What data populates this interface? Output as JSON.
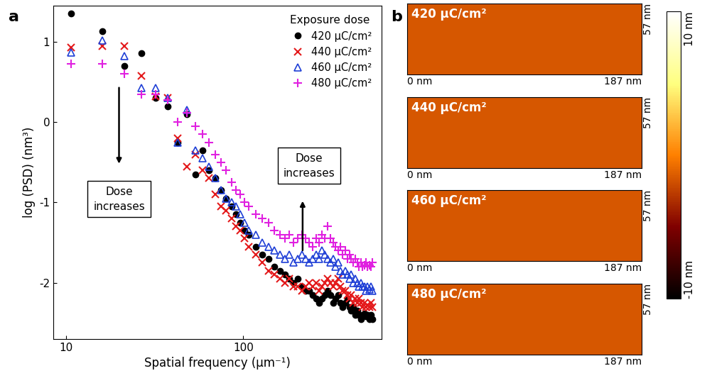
{
  "chart_data": [
    {
      "type": "scatter",
      "panel": "a",
      "x_label": "Spatial frequency (μm⁻¹)",
      "y_label": "log (PSD) (nm³)",
      "log": "x",
      "legend": "upper right",
      "legend_title": "Exposure dose",
      "xlim": [
        8.5,
        600
      ],
      "xticks": [
        10,
        100
      ],
      "ylim": [
        -2.7,
        1.45
      ],
      "yticks": [
        -2,
        -1,
        0,
        1
      ],
      "annotations": [
        "Dose\nincreases",
        "Dose\nincreases"
      ],
      "x": [
        10.7,
        16.0,
        21.4,
        26.7,
        32.1,
        37.4,
        42.8,
        48.1,
        53.5,
        58.8,
        64.2,
        69.5,
        74.9,
        80.2,
        85.6,
        90.9,
        96.3,
        101.6,
        107,
        117.7,
        128.4,
        139.1,
        149.8,
        160.5,
        171.2,
        181.9,
        192.6,
        203.3,
        214,
        224.7,
        235.4,
        246.1,
        256.8,
        267.5,
        278.2,
        288.9,
        299.6,
        310.3,
        321,
        331.7,
        342.4,
        353.1,
        363.8,
        374.5,
        385.2,
        395.9,
        406.6,
        417.3,
        428,
        438.7,
        449.4,
        460.1,
        470.8,
        481.5,
        492.2,
        502.9,
        513.6,
        524.3,
        535
      ],
      "series": [
        {
          "name": "420 μC/cm²",
          "color": "#000000",
          "marker": "circle",
          "values": [
            1.35,
            1.13,
            0.7,
            0.86,
            0.3,
            0.2,
            -0.25,
            0.1,
            -0.65,
            -0.35,
            -0.6,
            -0.7,
            -0.85,
            -0.95,
            -1.05,
            -1.15,
            -1.25,
            -1.35,
            -1.4,
            -1.55,
            -1.65,
            -1.7,
            -1.8,
            -1.85,
            -1.9,
            -1.95,
            -2.0,
            -1.95,
            -2.05,
            -2.1,
            -2.1,
            -2.15,
            -2.2,
            -2.25,
            -2.2,
            -2.15,
            -2.1,
            -2.15,
            -2.25,
            -2.2,
            -2.15,
            -2.25,
            -2.3,
            -2.25,
            -2.2,
            -2.3,
            -2.35,
            -2.3,
            -2.4,
            -2.35,
            -2.4,
            -2.45,
            -2.4,
            -2.38,
            -2.42,
            -2.4,
            -2.45,
            -2.4,
            -2.45
          ]
        },
        {
          "name": "440 μC/cm²",
          "color": "#e41a1c",
          "marker": "x",
          "values": [
            0.93,
            0.95,
            0.95,
            0.58,
            0.32,
            0.3,
            -0.2,
            -0.55,
            -0.4,
            -0.6,
            -0.7,
            -0.9,
            -1.05,
            -1.1,
            -1.2,
            -1.3,
            -1.35,
            -1.45,
            -1.55,
            -1.65,
            -1.75,
            -1.85,
            -1.9,
            -1.95,
            -2.0,
            -1.95,
            -2.05,
            -2.05,
            -2.1,
            -2.05,
            -2.0,
            -2.05,
            -2.0,
            -2.1,
            -2.05,
            -2.0,
            -1.95,
            -2.0,
            -2.05,
            -2.0,
            -1.95,
            -2.05,
            -2.1,
            -2.1,
            -2.15,
            -2.2,
            -2.15,
            -2.25,
            -2.2,
            -2.25,
            -2.2,
            -2.25,
            -2.3,
            -2.25,
            -2.3,
            -2.28,
            -2.3,
            -2.25,
            -2.3
          ]
        },
        {
          "name": "460 μC/cm²",
          "color": "#1f3fd6",
          "marker": "triangle_open",
          "values": [
            0.87,
            1.02,
            0.82,
            0.43,
            0.43,
            0.3,
            -0.25,
            0.15,
            -0.35,
            -0.45,
            -0.55,
            -0.7,
            -0.85,
            -0.95,
            -1.0,
            -1.05,
            -1.15,
            -1.25,
            -1.35,
            -1.4,
            -1.5,
            -1.55,
            -1.6,
            -1.65,
            -1.7,
            -1.65,
            -1.75,
            -1.7,
            -1.65,
            -1.7,
            -1.75,
            -1.7,
            -1.65,
            -1.7,
            -1.6,
            -1.65,
            -1.7,
            -1.75,
            -1.7,
            -1.8,
            -1.75,
            -1.85,
            -1.9,
            -1.85,
            -1.9,
            -1.95,
            -1.9,
            -2.0,
            -1.95,
            -2.0,
            -2.05,
            -2.0,
            -2.05,
            -2.05,
            -2.1,
            -2.05,
            -2.08,
            -2.05,
            -2.1
          ]
        },
        {
          "name": "480 μC/cm²",
          "color": "#e020e0",
          "marker": "plus",
          "values": [
            0.73,
            0.73,
            0.6,
            0.35,
            0.35,
            0.28,
            0.0,
            0.12,
            -0.05,
            -0.15,
            -0.25,
            -0.4,
            -0.5,
            -0.6,
            -0.75,
            -0.85,
            -0.9,
            -1.0,
            -1.05,
            -1.15,
            -1.2,
            -1.25,
            -1.35,
            -1.4,
            -1.45,
            -1.4,
            -1.5,
            -1.45,
            -1.4,
            -1.45,
            -1.5,
            -1.55,
            -1.45,
            -1.5,
            -1.4,
            -1.45,
            -1.3,
            -1.45,
            -1.5,
            -1.55,
            -1.6,
            -1.55,
            -1.65,
            -1.6,
            -1.7,
            -1.65,
            -1.7,
            -1.75,
            -1.7,
            -1.75,
            -1.8,
            -1.75,
            -1.8,
            -1.78,
            -1.75,
            -1.8,
            -1.78,
            -1.8,
            -1.75
          ]
        }
      ]
    },
    {
      "type": "image",
      "panel": "b",
      "images": [
        "420 μC/cm²",
        "440 μC/cm²",
        "460 μC/cm²",
        "480 μC/cm²"
      ],
      "xlim": [
        0,
        187
      ],
      "xticks": [
        {
          "value": 0,
          "label": "0 nm"
        },
        {
          "value": 187,
          "label": "187 nm"
        }
      ],
      "ylim": [
        0,
        57
      ],
      "yticks": [
        {
          "value": 57,
          "label": "57 nm"
        }
      ],
      "colorbar": {
        "range": [
          -10,
          10
        ],
        "ticks": [
          {
            "value": -10,
            "label": "-10 nm"
          },
          {
            "value": 10,
            "label": "10 nm"
          }
        ]
      }
    }
  ]
}
